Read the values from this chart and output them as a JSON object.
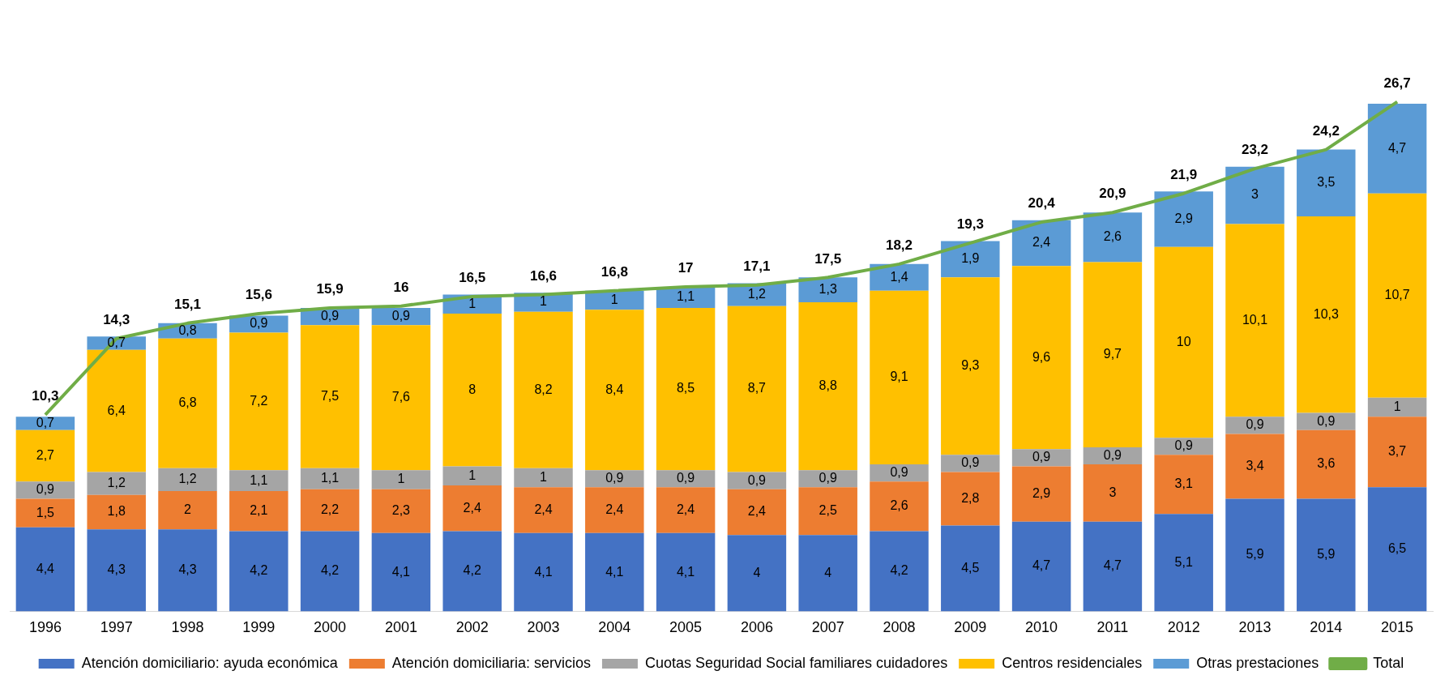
{
  "chart_data": {
    "type": "bar",
    "stacked": true,
    "grid": false,
    "legend": "bottom",
    "tick_labels": "x",
    "categories": [
      "1996",
      "1997",
      "1998",
      "1999",
      "2000",
      "2001",
      "2002",
      "2003",
      "2004",
      "2005",
      "2006",
      "2007",
      "2008",
      "2009",
      "2010",
      "2011",
      "2012",
      "2013",
      "2014",
      "2015"
    ],
    "series": [
      {
        "name": "Atención domiciliario: ayuda económica",
        "color": "#4472c4",
        "values": [
          4.4,
          4.3,
          4.3,
          4.2,
          4.2,
          4.1,
          4.2,
          4.1,
          4.1,
          4.1,
          4,
          4,
          4.2,
          4.5,
          4.7,
          4.7,
          5.1,
          5.9,
          5.9,
          6.5
        ],
        "value_labels": [
          "4,4",
          "4,3",
          "4,3",
          "4,2",
          "4,2",
          "4,1",
          "4,2",
          "4,1",
          "4,1",
          "4,1",
          "4",
          "4",
          "4,2",
          "4,5",
          "4,7",
          "4,7",
          "5,1",
          "5,9",
          "5,9",
          "6,5"
        ]
      },
      {
        "name": "Atención domiciliaria: servicios",
        "color": "#ed7d31",
        "values": [
          1.5,
          1.8,
          2,
          2.1,
          2.2,
          2.3,
          2.4,
          2.4,
          2.4,
          2.4,
          2.4,
          2.5,
          2.6,
          2.8,
          2.9,
          3,
          3.1,
          3.4,
          3.6,
          3.7
        ],
        "value_labels": [
          "1,5",
          "1,8",
          "2",
          "2,1",
          "2,2",
          "2,3",
          "2,4",
          "2,4",
          "2,4",
          "2,4",
          "2,4",
          "2,5",
          "2,6",
          "2,8",
          "2,9",
          "3",
          "3,1",
          "3,4",
          "3,6",
          "3,7"
        ]
      },
      {
        "name": "Cuotas Seguridad Social familiares cuidadores",
        "color": "#a5a5a5",
        "values": [
          0.9,
          1.2,
          1.2,
          1.1,
          1.1,
          1,
          1,
          1,
          0.9,
          0.9,
          0.9,
          0.9,
          0.9,
          0.9,
          0.9,
          0.9,
          0.9,
          0.9,
          0.9,
          1
        ],
        "value_labels": [
          "0,9",
          "1,2",
          "1,2",
          "1,1",
          "1,1",
          "1",
          "1",
          "1",
          "0,9",
          "0,9",
          "0,9",
          "0,9",
          "0,9",
          "0,9",
          "0,9",
          "0,9",
          "0,9",
          "0,9",
          "0,9",
          "1"
        ]
      },
      {
        "name": "Centros residenciales",
        "color": "#ffc000",
        "values": [
          2.7,
          6.4,
          6.8,
          7.2,
          7.5,
          7.6,
          8,
          8.2,
          8.4,
          8.5,
          8.7,
          8.8,
          9.1,
          9.3,
          9.6,
          9.7,
          10,
          10.1,
          10.3,
          10.7
        ],
        "value_labels": [
          "2,7",
          "6,4",
          "6,8",
          "7,2",
          "7,5",
          "7,6",
          "8",
          "8,2",
          "8,4",
          "8,5",
          "8,7",
          "8,8",
          "9,1",
          "9,3",
          "9,6",
          "9,7",
          "10",
          "10,1",
          "10,3",
          "10,7"
        ]
      },
      {
        "name": "Otras prestaciones",
        "color": "#5b9bd5",
        "values": [
          0.7,
          0.7,
          0.8,
          0.9,
          0.9,
          0.9,
          1,
          1,
          1,
          1.1,
          1.2,
          1.3,
          1.4,
          1.9,
          2.4,
          2.6,
          2.9,
          3,
          3.5,
          4.7
        ],
        "value_labels": [
          "0,7",
          "0,7",
          "0,8",
          "0,9",
          "0,9",
          "0,9",
          "1",
          "1",
          "1",
          "1,1",
          "1,2",
          "1,3",
          "1,4",
          "1,9",
          "2,4",
          "2,6",
          "2,9",
          "3",
          "3,5",
          "4,7"
        ]
      },
      {
        "name": "Total",
        "type": "line",
        "color": "#70ad47",
        "values": [
          10.3,
          14.3,
          15.1,
          15.6,
          15.9,
          16,
          16.5,
          16.6,
          16.8,
          17,
          17.1,
          17.5,
          18.2,
          19.3,
          20.4,
          20.9,
          21.9,
          23.2,
          24.2,
          26.7
        ],
        "value_labels": [
          "10,3",
          "14,3",
          "15,1",
          "15,6",
          "15,9",
          "16",
          "16,5",
          "16,6",
          "16,8",
          "17",
          "17,1",
          "17,5",
          "18,2",
          "19,3",
          "20,4",
          "20,9",
          "21,9",
          "23,2",
          "24,2",
          "26,7"
        ]
      }
    ]
  }
}
